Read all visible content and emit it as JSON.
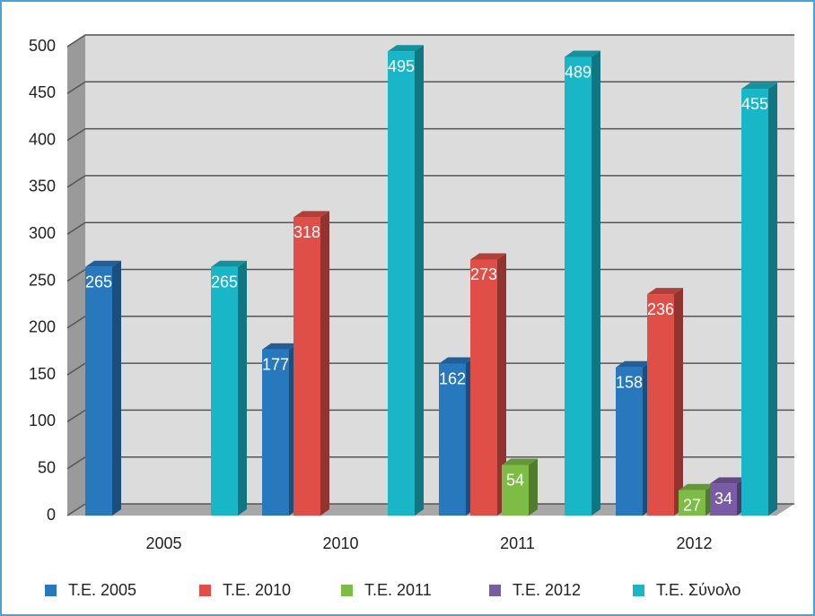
{
  "chart_data": {
    "type": "bar3d",
    "categories": [
      "2005",
      "2010",
      "2011",
      "2012"
    ],
    "series": [
      {
        "name": "Τ.Ε. 2005",
        "color": "#2878be",
        "values": [
          265,
          177,
          162,
          158
        ]
      },
      {
        "name": "Τ.Ε. 2010",
        "color": "#df4f47",
        "values": [
          null,
          318,
          273,
          236
        ]
      },
      {
        "name": "Τ.Ε. 2011",
        "color": "#7dbd45",
        "values": [
          null,
          null,
          54,
          27
        ]
      },
      {
        "name": "Τ.Ε. 2012",
        "color": "#7a5ca6",
        "values": [
          null,
          null,
          null,
          34
        ]
      },
      {
        "name": "Τ.Ε. Σύνολο",
        "color": "#18b6c6",
        "values": [
          265,
          495,
          489,
          455
        ]
      }
    ],
    "ylim": [
      0,
      500
    ],
    "yticks": [
      0,
      50,
      100,
      150,
      200,
      250,
      300,
      350,
      400,
      450,
      500
    ],
    "grid": true,
    "legend": "bottom"
  }
}
